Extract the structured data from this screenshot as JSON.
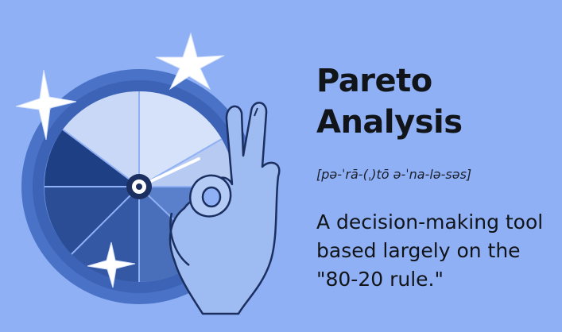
{
  "term": {
    "title": "Pareto Analysis",
    "pronunciation": "[pə-ˈrā-(ˌ)tō ə-ˈna-lə-səs]",
    "definition": "A decision-making tool based largely on the \"80-20 rule.\""
  },
  "colors": {
    "background": "#8fb0f5",
    "dial_light": "#c9d8f7",
    "dial_mid": "#5f86d6",
    "dial_dark": "#2a4d96",
    "hand": "#9fbcf2",
    "star": "#ffffff"
  },
  "icons": [
    "dial-wheel-icon",
    "ok-hand-icon",
    "sparkle-icon"
  ]
}
